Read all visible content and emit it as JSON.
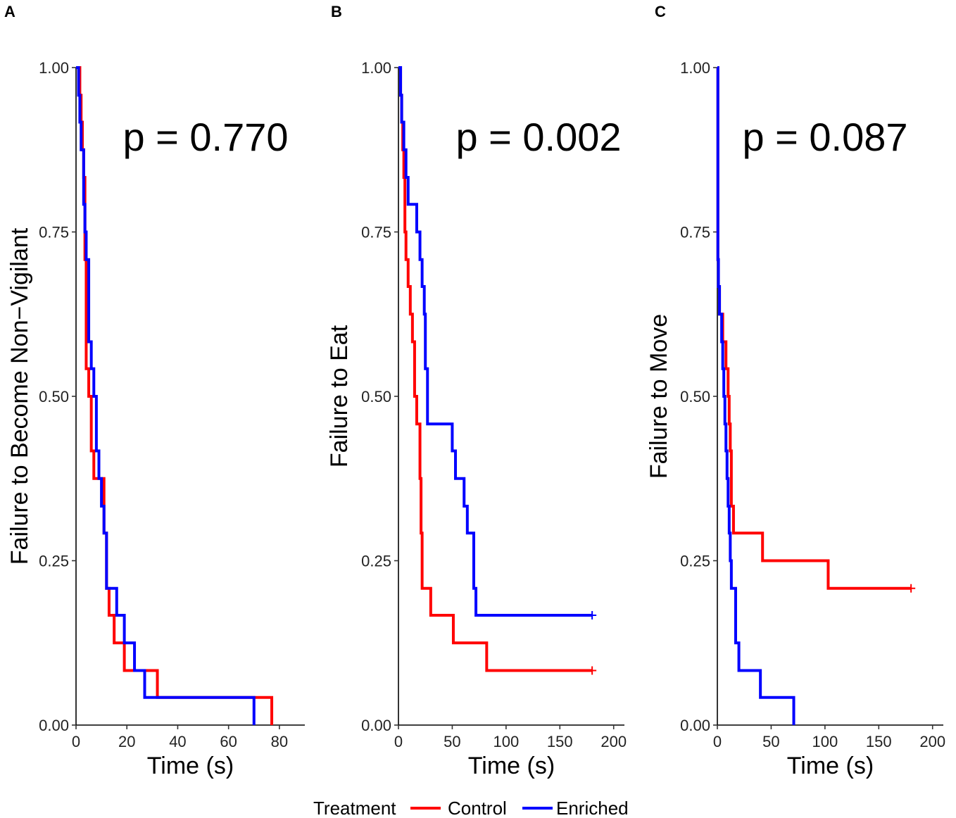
{
  "legend": {
    "title": "Treatment",
    "items": [
      {
        "label": "Control",
        "color": "#ff0000"
      },
      {
        "label": "Enriched",
        "color": "#0000ff"
      }
    ]
  },
  "chart_data": [
    {
      "type": "line",
      "subtype": "step (Kaplan-Meier)",
      "panel": "A",
      "title": "",
      "annotation": "p = 0.770",
      "xlabel": "Time (s)",
      "ylabel": "Failure to Become Non−Vigilant",
      "xlim": [
        0,
        90
      ],
      "ylim": [
        0,
        1
      ],
      "xticks": [
        0,
        20,
        40,
        60,
        80
      ],
      "yticks": [
        0,
        0.25,
        0.5,
        0.75,
        1
      ],
      "xtick_labels": [
        "0",
        "20",
        "40",
        "60",
        "80"
      ],
      "ytick_labels": [
        "0.00",
        "0.25",
        "0.50",
        "0.75",
        "1.00"
      ],
      "series": [
        {
          "name": "Control",
          "color": "#ff0000",
          "x": [
            0,
            1.5,
            2,
            2.5,
            3,
            3.5,
            4,
            5,
            6,
            7,
            11,
            12,
            13,
            15,
            19,
            24,
            32,
            77
          ],
          "y": [
            1,
            0.958,
            0.917,
            0.875,
            0.833,
            0.708,
            0.542,
            0.5,
            0.417,
            0.375,
            0.292,
            0.208,
            0.167,
            0.125,
            0.083,
            0.083,
            0.042,
            0
          ],
          "censored": []
        },
        {
          "name": "Enriched",
          "color": "#0000ff",
          "x": [
            0,
            1,
            1.5,
            2,
            3,
            3.5,
            4,
            5,
            6,
            7,
            8,
            9,
            10,
            11,
            12,
            13,
            16,
            19,
            23,
            27,
            70
          ],
          "y": [
            1,
            0.958,
            0.917,
            0.875,
            0.792,
            0.75,
            0.708,
            0.583,
            0.542,
            0.5,
            0.417,
            0.375,
            0.333,
            0.292,
            0.208,
            0.208,
            0.167,
            0.125,
            0.083,
            0.042,
            0
          ],
          "censored": []
        }
      ]
    },
    {
      "type": "line",
      "subtype": "step (Kaplan-Meier)",
      "panel": "B",
      "title": "",
      "annotation": "p = 0.002",
      "xlabel": "Time (s)",
      "ylabel": "Failure to Eat",
      "xlim": [
        0,
        210
      ],
      "ylim": [
        0,
        1
      ],
      "xticks": [
        0,
        50,
        100,
        150,
        200
      ],
      "yticks": [
        0,
        0.25,
        0.5,
        0.75,
        1
      ],
      "xtick_labels": [
        "0",
        "50",
        "100",
        "150",
        "200"
      ],
      "ytick_labels": [
        "0.00",
        "0.25",
        "0.50",
        "0.75",
        "1.00"
      ],
      "series": [
        {
          "name": "Control",
          "color": "#ff0000",
          "x": [
            0,
            2,
            3,
            4,
            5,
            6,
            7,
            9,
            11,
            13,
            15,
            17,
            20,
            21,
            22,
            30,
            51,
            82
          ],
          "y": [
            1,
            0.958,
            0.917,
            0.875,
            0.833,
            0.75,
            0.708,
            0.667,
            0.625,
            0.583,
            0.5,
            0.458,
            0.375,
            0.292,
            0.208,
            0.167,
            0.125,
            0.083
          ],
          "censored": [
            {
              "x": 180,
              "y": 0.083
            }
          ]
        },
        {
          "name": "Enriched",
          "color": "#0000ff",
          "x": [
            0,
            2,
            3,
            5,
            7,
            9,
            17,
            20,
            22,
            24,
            25,
            27,
            50,
            53,
            61,
            64,
            70,
            72
          ],
          "y": [
            1,
            0.958,
            0.917,
            0.875,
            0.833,
            0.792,
            0.75,
            0.708,
            0.667,
            0.625,
            0.542,
            0.458,
            0.417,
            0.375,
            0.333,
            0.292,
            0.208,
            0.167
          ],
          "censored": [
            {
              "x": 180,
              "y": 0.167
            }
          ]
        }
      ]
    },
    {
      "type": "line",
      "subtype": "step (Kaplan-Meier)",
      "panel": "C",
      "title": "",
      "annotation": "p = 0.087",
      "xlabel": "Time (s)",
      "ylabel": "Failure to Move",
      "xlim": [
        0,
        210
      ],
      "ylim": [
        0,
        1
      ],
      "xticks": [
        0,
        50,
        100,
        150,
        200
      ],
      "yticks": [
        0,
        0.25,
        0.5,
        0.75,
        1
      ],
      "xtick_labels": [
        "0",
        "50",
        "100",
        "150",
        "200"
      ],
      "ytick_labels": [
        "0.00",
        "0.25",
        "0.50",
        "0.75",
        "1.00"
      ],
      "series": [
        {
          "name": "Control",
          "color": "#ff0000",
          "x": [
            0,
            0.5,
            1,
            2,
            5,
            8,
            10,
            11,
            12,
            13,
            15,
            42,
            103
          ],
          "y": [
            1,
            0.708,
            0.667,
            0.625,
            0.583,
            0.542,
            0.5,
            0.458,
            0.417,
            0.333,
            0.292,
            0.25,
            0.208
          ],
          "censored": [
            {
              "x": 180,
              "y": 0.208
            }
          ]
        },
        {
          "name": "Enriched",
          "color": "#0000ff",
          "x": [
            0,
            0.5,
            1,
            2,
            4,
            5,
            6,
            7,
            8,
            9,
            10,
            11,
            12,
            13,
            14,
            17,
            20,
            25,
            40,
            71
          ],
          "y": [
            1,
            0.708,
            0.667,
            0.625,
            0.583,
            0.542,
            0.5,
            0.458,
            0.417,
            0.375,
            0.333,
            0.292,
            0.25,
            0.208,
            0.208,
            0.125,
            0.083,
            0.083,
            0.042,
            0
          ],
          "censored": []
        }
      ]
    }
  ]
}
